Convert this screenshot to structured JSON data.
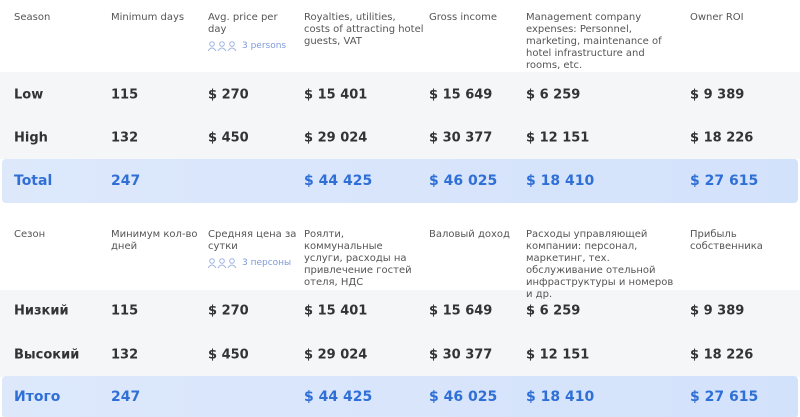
{
  "tables": [
    {
      "header": [
        "Season",
        "Minimum days",
        "Avg. price per day",
        "Royalties, utilities, costs of attracting hotel guests, VAT",
        "Gross income",
        "Management company expenses: Personnel, marketing, maintenance of hotel infrastructure and rooms, etc.",
        "Owner ROI"
      ],
      "persons": "3 persons",
      "rows": [
        [
          "Low",
          "115",
          "$ 270",
          "$ 15 401",
          "$ 15 649",
          "$ 6 259",
          "$ 9 389"
        ],
        [
          "High",
          "132",
          "$ 450",
          "$ 29 024",
          "$ 30 377",
          "$ 12 151",
          "$ 18 226"
        ]
      ],
      "total": [
        "Total",
        "247",
        "$ 44 425",
        "$ 46 025",
        "$ 18 410",
        "$ 27 615"
      ]
    },
    {
      "header": [
        "Сезон",
        "Минимум кол-во дней",
        "Средняя цена за сутки",
        "Роялти, коммунальные услуги, расходы на привлечение гостей отеля, НДС",
        "Валовый доход",
        "Расходы управляющей компании: персонал, маркетинг, тех. обслуживание отельной инфраструктуры и номеров и др.",
        "Прибыль собственника"
      ],
      "persons": "3 персоны",
      "rows": [
        [
          "Низкий",
          "115",
          "$ 270",
          "$ 15 401",
          "$ 15 649",
          "$ 6 259",
          "$ 9 389"
        ],
        [
          "Высокий",
          "132",
          "$ 450",
          "$ 29 024",
          "$ 30 377",
          "$ 12 151",
          "$ 18 226"
        ]
      ],
      "total": [
        "Итого",
        "247",
        "$ 44 425",
        "$ 46 025",
        "$ 18 410",
        "$ 27 615"
      ]
    }
  ]
}
